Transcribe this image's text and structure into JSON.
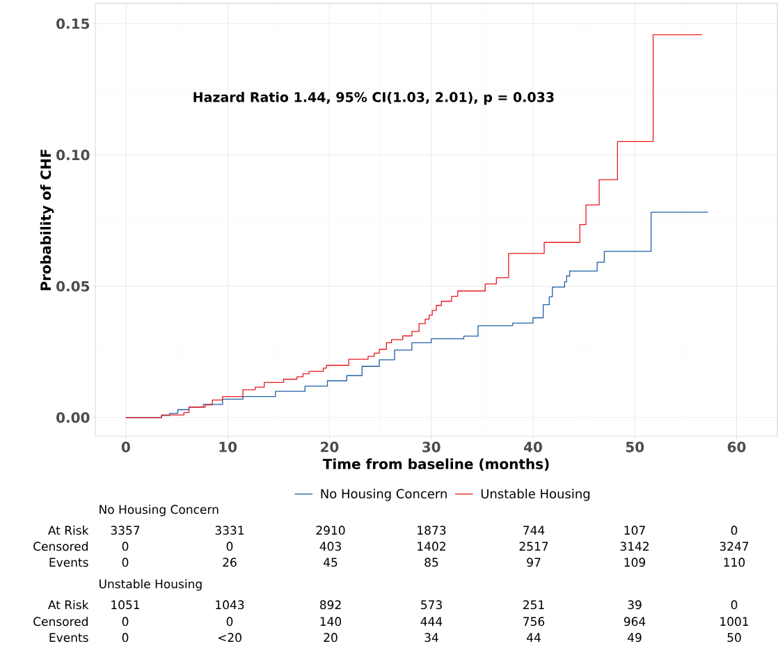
{
  "chart_data": {
    "type": "step",
    "xlabel": "Time from baseline (months)",
    "ylabel": "Probability of CHF",
    "xlim": [
      -3,
      64
    ],
    "ylim": [
      -0.0072,
      0.1577
    ],
    "xticks": [
      0,
      10,
      20,
      30,
      40,
      50,
      60
    ],
    "yticks": [
      {
        "value": 0,
        "label": "0.00"
      },
      {
        "value": 0.05,
        "label": "0.05"
      },
      {
        "value": 0.1,
        "label": "0.10"
      },
      {
        "value": 0.15,
        "label": "0.15"
      }
    ],
    "grid": true,
    "legend": "bottom",
    "series": [
      {
        "name": "No Housing Concern",
        "color": "#1f5fa6",
        "x": [
          0,
          3.5,
          4.3,
          5.1,
          6.2,
          7.6,
          9.5,
          11.5,
          14.7,
          17.6,
          19.8,
          21.7,
          23.2,
          24.9,
          26.4,
          28.1,
          30.0,
          33.2,
          34.6,
          38.0,
          40.0,
          41.0,
          41.6,
          41.9,
          43.1,
          43.3,
          43.6,
          46.3,
          47.0,
          51.6,
          57.2
        ],
        "values": [
          0,
          0.0008,
          0.0016,
          0.003,
          0.004,
          0.005,
          0.007,
          0.008,
          0.01,
          0.012,
          0.014,
          0.016,
          0.0195,
          0.022,
          0.0257,
          0.0285,
          0.03,
          0.031,
          0.035,
          0.036,
          0.038,
          0.043,
          0.046,
          0.0497,
          0.0517,
          0.0539,
          0.0558,
          0.0592,
          0.0633,
          0.0782,
          0.0782
        ]
      },
      {
        "name": "Unstable Housing",
        "color": "#e8191f",
        "x": [
          0,
          3.5,
          5.7,
          6.2,
          7.8,
          8.5,
          9.5,
          11.5,
          12.7,
          13.6,
          15.5,
          16.8,
          17.4,
          18.0,
          19.4,
          19.7,
          21.9,
          23.8,
          24.4,
          24.9,
          25.6,
          26.1,
          27.2,
          28.1,
          28.8,
          29.4,
          29.8,
          30.1,
          30.5,
          31.0,
          32.0,
          32.6,
          35.3,
          36.4,
          37.6,
          41.1,
          44.6,
          45.2,
          46.5,
          48.3,
          51.8,
          56.6
        ],
        "values": [
          0,
          0.001,
          0.0019,
          0.004,
          0.0048,
          0.0067,
          0.008,
          0.0106,
          0.0116,
          0.0134,
          0.0146,
          0.0155,
          0.0167,
          0.0176,
          0.0188,
          0.0199,
          0.0222,
          0.0233,
          0.0245,
          0.026,
          0.0285,
          0.0297,
          0.0311,
          0.0328,
          0.0358,
          0.0375,
          0.039,
          0.0408,
          0.0427,
          0.0443,
          0.0462,
          0.0482,
          0.0509,
          0.0533,
          0.0625,
          0.0667,
          0.0735,
          0.081,
          0.0906,
          0.1051,
          0.1458,
          0.1458
        ]
      }
    ],
    "annotations": [
      "Hazard Ratio 1.44, 95% CI(1.03, 2.01), p = 0.033",
      "No Housing Concern",
      "At Risk",
      "3357",
      "3331",
      "2910",
      "1873",
      "744",
      "107",
      "0",
      "Censored",
      "0",
      "0",
      "403",
      "1402",
      "2517",
      "3142",
      "3247",
      "Events",
      "0",
      "26",
      "45",
      "85",
      "97",
      "109",
      "110",
      "Unstable Housing",
      "At Risk",
      "1051",
      "1043",
      "892",
      "573",
      "251",
      "39",
      "0",
      "Censored",
      "0",
      "0",
      "140",
      "444",
      "756",
      "964",
      "1001",
      "Events",
      "0",
      "<20",
      "20",
      "34",
      "44",
      "49",
      "50"
    ]
  }
}
